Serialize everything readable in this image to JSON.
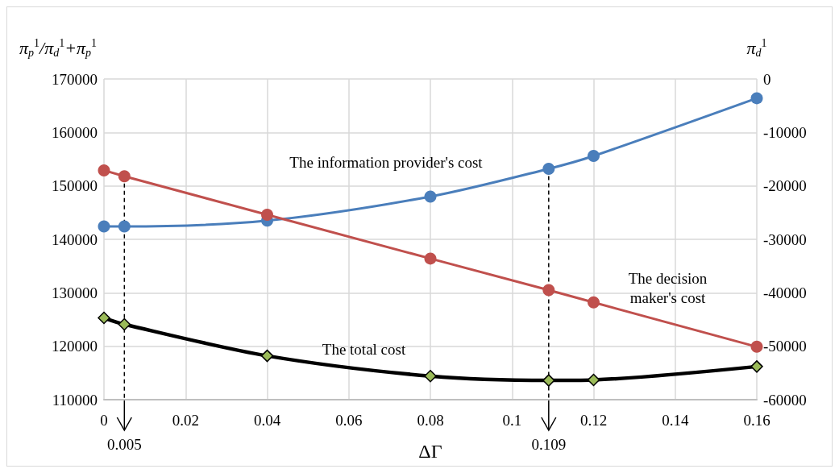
{
  "chart_data": {
    "type": "line",
    "xlabel": "ΔΓ",
    "ylabel": "π$_{p}$$^{1}$/π$_{d}$$^{1}$+π$_{p}$$^{1}$",
    "y2label": "π$_{d}$$^{1}$",
    "x": [
      0,
      0.005,
      0.04,
      0.08,
      0.109,
      0.12,
      0.16
    ],
    "series": [
      {
        "name": "The information provider's cost",
        "color": "#4a7ebb",
        "axis": "y2",
        "marker": "circle",
        "values": [
          -27600,
          -27600,
          -26500,
          -22000,
          -16800,
          -14400,
          -3600
        ]
      },
      {
        "name": "The decision\nmaker's cost",
        "color": "#c0504d",
        "marker": "circle",
        "values": [
          152900,
          151800,
          144600,
          136400,
          130500,
          128200,
          119900
        ]
      },
      {
        "name": "The total cost",
        "color": "#000000",
        "marker": "diamond",
        "values": [
          125300,
          124100,
          118200,
          114400,
          113600,
          113700,
          116200
        ]
      }
    ],
    "xlim": [
      0,
      0.16
    ],
    "xticks": [
      0,
      0.02,
      0.04,
      0.06,
      0.08,
      0.1,
      0.12,
      0.14,
      0.16
    ],
    "ylim": [
      110000,
      170000
    ],
    "yticks": [
      110000,
      120000,
      130000,
      140000,
      150000,
      160000,
      170000
    ],
    "y2lim": [
      -60000,
      0
    ],
    "y2ticks": [
      -60000,
      -50000,
      -40000,
      -30000,
      -20000,
      -10000,
      0
    ],
    "ref_lines": [
      {
        "axis": "x",
        "value": 0.005,
        "label": "0.005",
        "line_style": "dashed",
        "color": "#000000"
      },
      {
        "axis": "x",
        "value": 0.109,
        "label": "0.109",
        "line_style": "dashed",
        "color": "#000000"
      }
    ],
    "grid": true,
    "legend": false
  }
}
